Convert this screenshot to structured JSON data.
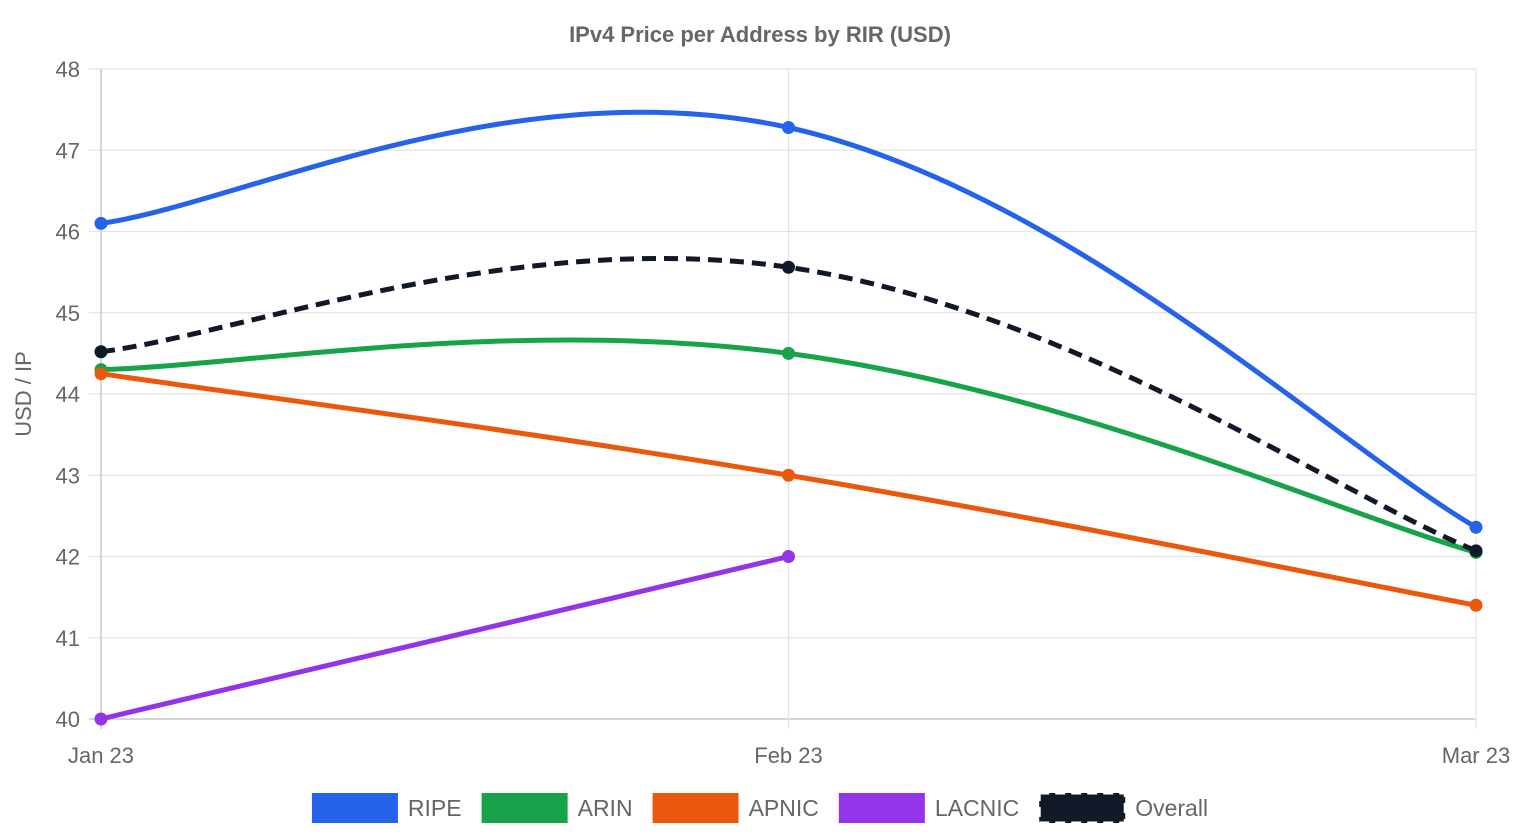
{
  "chart_data": {
    "type": "line",
    "title": "IPv4 Price per Address by RIR (USD)",
    "xlabel": "",
    "ylabel": "USD / IP",
    "categories": [
      "Jan 23",
      "Feb 23",
      "Mar 23"
    ],
    "ylim": [
      40,
      48
    ],
    "yticks": [
      40,
      41,
      42,
      43,
      44,
      45,
      46,
      47,
      48
    ],
    "grid": true,
    "legend_position": "bottom",
    "series": [
      {
        "name": "RIPE",
        "color": "#2563eb",
        "values": [
          46.1,
          47.28,
          42.36
        ],
        "dashed": false
      },
      {
        "name": "ARIN",
        "color": "#16a34a",
        "values": [
          44.3,
          44.5,
          42.05
        ],
        "dashed": false
      },
      {
        "name": "APNIC",
        "color": "#ea580c",
        "values": [
          44.25,
          43.0,
          41.4
        ],
        "dashed": false
      },
      {
        "name": "LACNIC",
        "color": "#9333ea",
        "values": [
          40.0,
          42.0,
          null
        ],
        "dashed": false
      },
      {
        "name": "Overall",
        "color": "#111827",
        "values": [
          44.52,
          45.56,
          42.07
        ],
        "dashed": true
      }
    ]
  }
}
